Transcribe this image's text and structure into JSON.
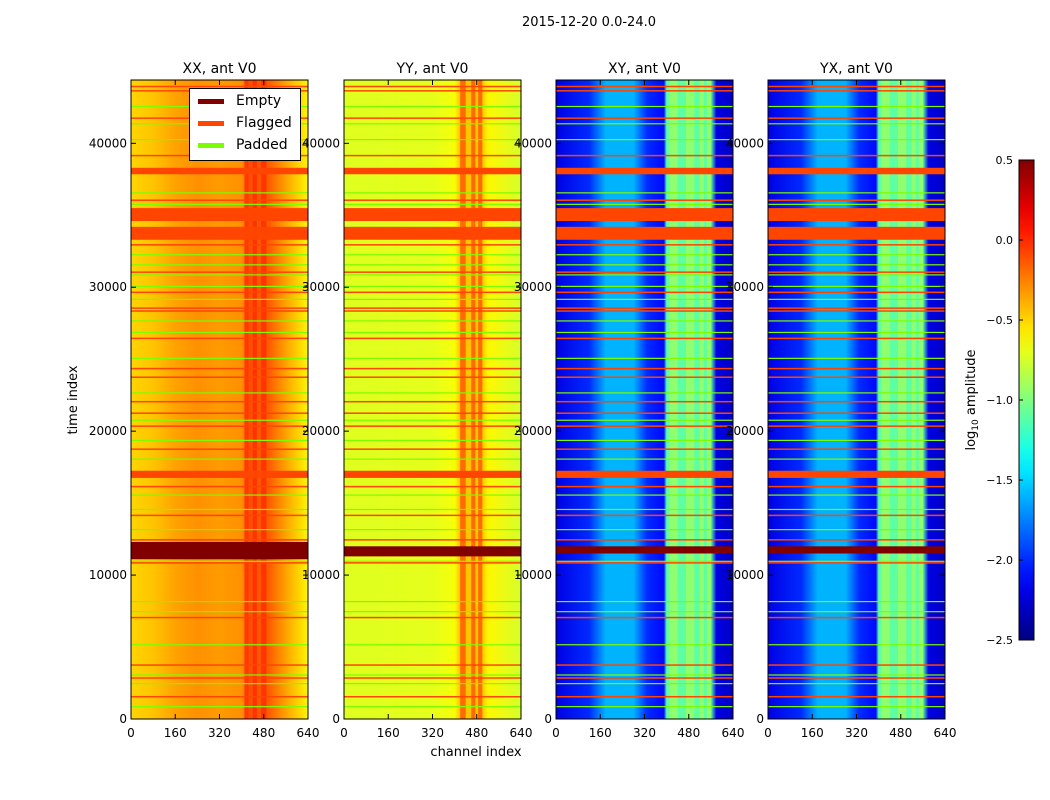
{
  "chart_data": {
    "type": "heatmap",
    "title": "2015-12-20 0.0-24.0",
    "xlabel": "channel index",
    "ylabel": "time index",
    "xlim": [
      0,
      640
    ],
    "ylim": [
      0,
      44400
    ],
    "xticks": [
      "0",
      "160",
      "320",
      "480",
      "640"
    ],
    "xtick_values": [
      0,
      160,
      320,
      480,
      640
    ],
    "yticks": [
      "0",
      "10000",
      "20000",
      "30000",
      "40000"
    ],
    "ytick_values": [
      0,
      10000,
      20000,
      30000,
      40000
    ],
    "colorbar": {
      "label": "log10 amplitude",
      "label_main": "log",
      "label_sub": "10",
      "label_rest": " amplitude",
      "range": [
        -2.5,
        0.5
      ],
      "colormap": "jet",
      "ticks": [
        "0.5",
        "0.0",
        "−0.5",
        "−1.0",
        "−1.5",
        "−2.0",
        "−2.5"
      ],
      "tick_values": [
        0.5,
        0.0,
        -0.5,
        -1.0,
        -1.5,
        -2.0,
        -2.5
      ]
    },
    "legend": {
      "placement": "upper-right of first panel",
      "entries": [
        {
          "label": "Empty",
          "color": "#800000"
        },
        {
          "label": "Flagged",
          "color": "#ff4500"
        },
        {
          "label": "Padded",
          "color": "#7cfc00"
        }
      ]
    },
    "flagged_blocks": [
      [
        33300,
        34200
      ],
      [
        34600,
        35500
      ],
      [
        37850,
        38300
      ],
      [
        16750,
        17250
      ]
    ],
    "flagged_lines": [
      1600,
      2900,
      3800,
      7100,
      10900,
      12500,
      14200,
      16200,
      18800,
      20400,
      21300,
      22100,
      23800,
      24400,
      26500,
      28400,
      28600,
      29700,
      31100,
      33000,
      36100,
      39200,
      41800,
      43700,
      44000
    ],
    "padded_lines": [
      900,
      2500,
      3100,
      5200,
      7500,
      8200,
      11000,
      13200,
      14600,
      15600,
      18100,
      19400,
      20800,
      22700,
      25100,
      26900,
      27700,
      29200,
      30100,
      30900,
      31600,
      32300,
      35800,
      36600,
      40300,
      41400,
      42600
    ],
    "panels": [
      {
        "title": "XX, ant V0",
        "profile": [
          [
            0,
            -0.5
          ],
          [
            80,
            -0.45
          ],
          [
            160,
            -0.35
          ],
          [
            240,
            -0.3
          ],
          [
            320,
            -0.33
          ],
          [
            400,
            -0.3
          ],
          [
            430,
            -0.1
          ],
          [
            500,
            -0.15
          ],
          [
            560,
            -0.35
          ],
          [
            640,
            -0.6
          ]
        ],
        "rfi_channels": [
          [
            410,
            425
          ],
          [
            440,
            455
          ],
          [
            470,
            490
          ]
        ],
        "rfi_value": 0.0,
        "empty": [
          [
            11100,
            12300
          ]
        ]
      },
      {
        "title": "YY, ant V0",
        "profile": [
          [
            0,
            -0.72
          ],
          [
            320,
            -0.7
          ],
          [
            400,
            -0.65
          ],
          [
            420,
            -0.45
          ],
          [
            500,
            -0.45
          ],
          [
            520,
            -0.6
          ],
          [
            640,
            -0.75
          ]
        ],
        "rfi_channels": [
          [
            420,
            440
          ],
          [
            460,
            475
          ],
          [
            485,
            500
          ]
        ],
        "rfi_value": -0.1,
        "empty": [
          [
            11300,
            12000
          ]
        ]
      },
      {
        "title": "XY, ant V0",
        "profile": [
          [
            0,
            -2.2
          ],
          [
            120,
            -2.0
          ],
          [
            180,
            -1.6
          ],
          [
            280,
            -1.6
          ],
          [
            330,
            -2.0
          ],
          [
            390,
            -2.1
          ],
          [
            400,
            -1.1
          ],
          [
            560,
            -1.1
          ],
          [
            580,
            -2.2
          ],
          [
            640,
            -2.3
          ]
        ],
        "rfi_channels": [
          [
            410,
            440
          ],
          [
            470,
            500
          ],
          [
            520,
            535
          ],
          [
            545,
            560
          ]
        ],
        "rfi_value": -0.9,
        "empty": [
          [
            11500,
            12000
          ]
        ]
      },
      {
        "title": "YX, ant V0",
        "profile": [
          [
            0,
            -2.2
          ],
          [
            120,
            -2.0
          ],
          [
            180,
            -1.6
          ],
          [
            280,
            -1.6
          ],
          [
            330,
            -2.0
          ],
          [
            390,
            -2.1
          ],
          [
            400,
            -1.1
          ],
          [
            560,
            -1.1
          ],
          [
            580,
            -2.2
          ],
          [
            640,
            -2.3
          ]
        ],
        "rfi_channels": [
          [
            410,
            440
          ],
          [
            470,
            500
          ],
          [
            520,
            535
          ],
          [
            545,
            560
          ]
        ],
        "rfi_value": -0.9,
        "empty": [
          [
            11500,
            12000
          ]
        ]
      }
    ]
  }
}
